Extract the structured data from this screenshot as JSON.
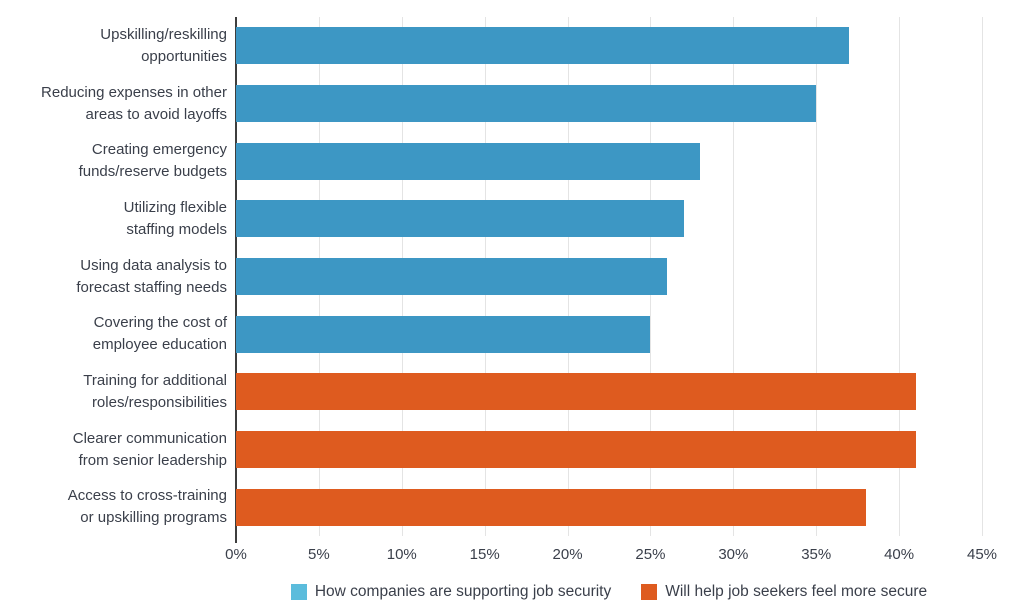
{
  "chart_data": {
    "type": "bar",
    "orientation": "horizontal",
    "title": "",
    "xlabel": "",
    "ylabel": "",
    "xlim": [
      0,
      45
    ],
    "grid": "vertical",
    "legend_position": "bottom-center",
    "x_ticks": [
      {
        "value": 0,
        "label": "0%"
      },
      {
        "value": 5,
        "label": "5%"
      },
      {
        "value": 10,
        "label": "10%"
      },
      {
        "value": 15,
        "label": "15%"
      },
      {
        "value": 20,
        "label": "20%"
      },
      {
        "value": 25,
        "label": "25%"
      },
      {
        "value": 30,
        "label": "30%"
      },
      {
        "value": 35,
        "label": "35%"
      },
      {
        "value": 40,
        "label": "40%"
      },
      {
        "value": 45,
        "label": "45%"
      }
    ],
    "series": [
      {
        "name": "How companies are supporting job security",
        "bar_color": "#3d97c4",
        "legend_color": "#5bbcdc"
      },
      {
        "name": "Will help job seekers feel more secure",
        "bar_color": "#de5b1f",
        "legend_color": "#de5b1f"
      }
    ],
    "bars": [
      {
        "label": "Upskilling/reskilling opportunities",
        "label_lines": [
          "Upskilling/reskilling",
          "opportunities"
        ],
        "value": 37,
        "series": 0
      },
      {
        "label": "Reducing expenses in other areas to avoid layoffs",
        "label_lines": [
          "Reducing expenses in other",
          "areas to avoid layoffs"
        ],
        "value": 35,
        "series": 0
      },
      {
        "label": "Creating emergency funds/reserve budgets",
        "label_lines": [
          "Creating emergency",
          "funds/reserve budgets"
        ],
        "value": 28,
        "series": 0
      },
      {
        "label": "Utilizing flexible staffing models",
        "label_lines": [
          "Utilizing flexible",
          "staffing models"
        ],
        "value": 27,
        "series": 0
      },
      {
        "label": "Using data analysis to forecast staffing needs",
        "label_lines": [
          "Using data analysis to",
          "forecast staffing needs"
        ],
        "value": 26,
        "series": 0
      },
      {
        "label": "Covering the cost of employee education",
        "label_lines": [
          "Covering the cost of",
          "employee education"
        ],
        "value": 25,
        "series": 0
      },
      {
        "label": "Training for additional roles/responsibilities",
        "label_lines": [
          "Training for additional",
          "roles/responsibilities"
        ],
        "value": 41,
        "series": 1
      },
      {
        "label": "Clearer communication from senior leadership",
        "label_lines": [
          "Clearer communication",
          "from senior leadership"
        ],
        "value": 41,
        "series": 1
      },
      {
        "label": "Access to cross-training or upskilling programs",
        "label_lines": [
          "Access to cross-training",
          "or upskilling programs"
        ],
        "value": 38,
        "series": 1
      }
    ]
  },
  "colors": {
    "background": "#ffffff",
    "grid_line": "#e4e4e4",
    "axis_line": "#3e3e3e",
    "text": "#3a3f4a"
  }
}
